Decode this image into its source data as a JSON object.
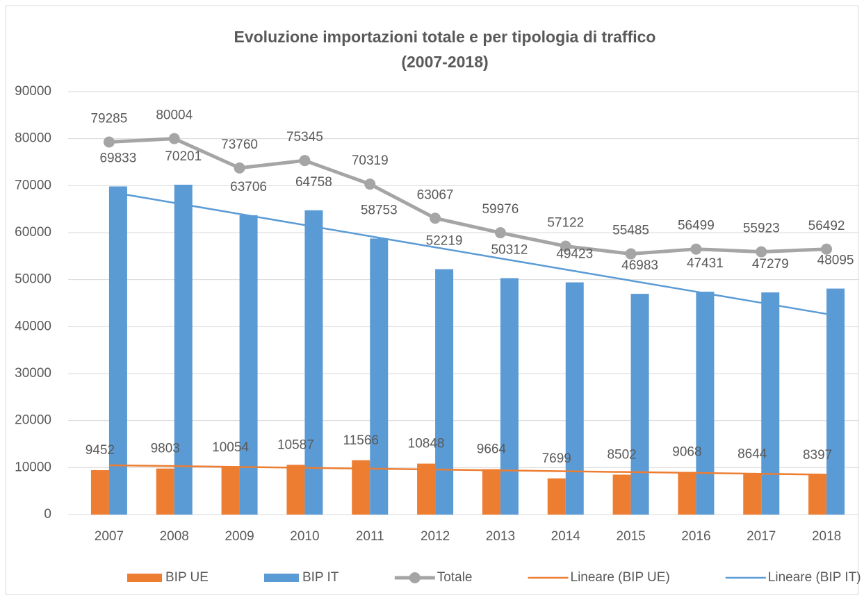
{
  "chart_data": {
    "type": "combo",
    "title_lines": [
      "Evoluzione importazioni totale e per tipologia di traffico",
      "(2007-2018)"
    ],
    "categories": [
      "2007",
      "2008",
      "2009",
      "2010",
      "2011",
      "2012",
      "2013",
      "2014",
      "2015",
      "2016",
      "2017",
      "2018"
    ],
    "ylim": [
      0,
      90000
    ],
    "yticks": [
      0,
      10000,
      20000,
      30000,
      40000,
      50000,
      60000,
      70000,
      80000,
      90000
    ],
    "grid": true,
    "legend": "bottom",
    "series": [
      {
        "name": "BIP UE",
        "type": "bar",
        "color": "#ed7d31",
        "labels": true,
        "values": [
          9452,
          9803,
          10054,
          10587,
          11566,
          10848,
          9664,
          7699,
          8502,
          9068,
          8644,
          8397
        ]
      },
      {
        "name": "BIP IT",
        "type": "bar",
        "color": "#5b9bd5",
        "labels": true,
        "values": [
          69833,
          70201,
          63706,
          64758,
          58753,
          52219,
          50312,
          49423,
          46983,
          47431,
          47279,
          48095
        ]
      },
      {
        "name": "Totale",
        "type": "line",
        "color": "#a5a5a5",
        "markers": true,
        "labels": true,
        "values": [
          79285,
          80004,
          73760,
          75345,
          70319,
          63067,
          59976,
          57122,
          55485,
          56499,
          55923,
          56492
        ]
      },
      {
        "name": "Lineare (BIP UE)",
        "type": "line",
        "color": "#ed7d31",
        "markers": false,
        "labels": false,
        "values": [
          10500,
          10318,
          10136,
          9955,
          9773,
          9591,
          9409,
          9227,
          9045,
          8864,
          8682,
          8500
        ]
      },
      {
        "name": "Lineare (BIP IT)",
        "type": "line",
        "color": "#5b9bd5",
        "markers": false,
        "labels": false,
        "values": [
          68700,
          66336,
          63973,
          61609,
          59245,
          56882,
          54518,
          52155,
          49791,
          47427,
          45064,
          42700
        ]
      }
    ]
  }
}
